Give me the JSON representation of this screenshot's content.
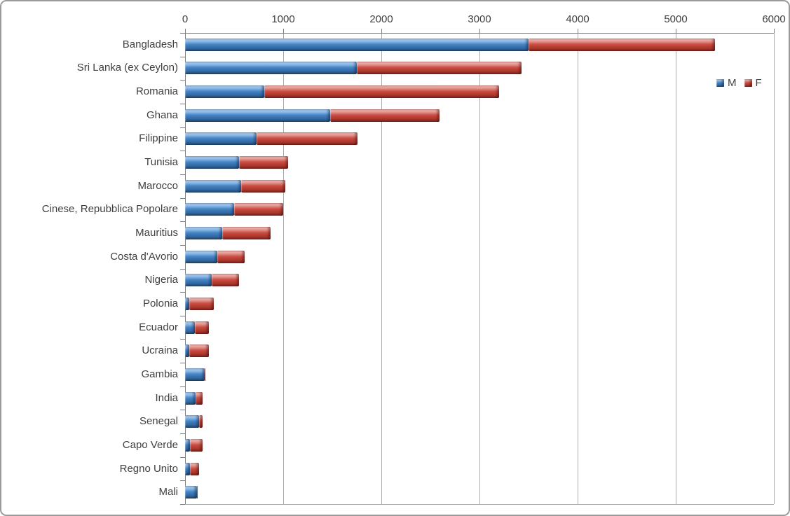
{
  "chart_data": {
    "type": "bar",
    "orientation": "horizontal",
    "stacked": true,
    "title": "",
    "xlabel": "",
    "ylabel": "",
    "xlim": [
      0,
      6000
    ],
    "x_ticks": [
      0,
      1000,
      2000,
      3000,
      4000,
      5000,
      6000
    ],
    "grid": true,
    "legend_position": "right-inside",
    "categories": [
      "Bangladesh",
      "Sri Lanka (ex Ceylon)",
      "Romania",
      "Ghana",
      "Filippine",
      "Tunisia",
      "Marocco",
      "Cinese, Repubblica Popolare",
      "Mauritius",
      "Costa d'Avorio",
      "Nigeria",
      "Polonia",
      "Ecuador",
      "Ucraina",
      "Gambia",
      "India",
      "Senegal",
      "Capo Verde",
      "Regno Unito",
      "Mali"
    ],
    "series": [
      {
        "name": "M",
        "color": "#3E7CBF",
        "values": [
          3500,
          1750,
          810,
          1480,
          730,
          550,
          570,
          500,
          380,
          330,
          270,
          40,
          100,
          40,
          200,
          110,
          140,
          50,
          50,
          120
        ]
      },
      {
        "name": "F",
        "color": "#C7473D",
        "values": [
          1900,
          1680,
          2390,
          1110,
          1030,
          500,
          450,
          500,
          490,
          280,
          280,
          250,
          140,
          200,
          10,
          70,
          40,
          130,
          90,
          10
        ]
      }
    ]
  }
}
